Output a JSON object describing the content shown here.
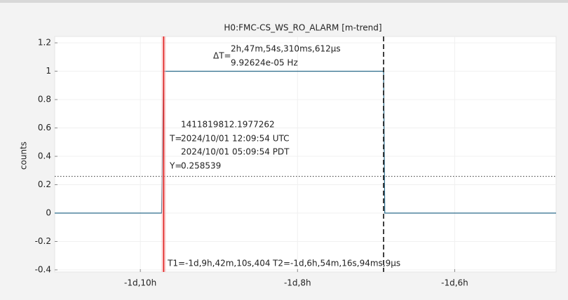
{
  "chart_data": {
    "type": "line",
    "title": "H0:FMC-CS_WS_RO_ALARM [m-trend]",
    "y_label": "counts",
    "x": [
      -35.09,
      -33.73,
      -33.703,
      -30.905,
      -30.89,
      -28.71
    ],
    "series": [
      {
        "name": "H0:FMC-CS_WS_RO_ALARM",
        "color": "#2b6b8a",
        "values": [
          0,
          0,
          1,
          1,
          0,
          0
        ]
      }
    ],
    "xlim": [
      -35.09,
      -28.71
    ],
    "ylim": [
      -0.415,
      1.245
    ],
    "xticks": [
      {
        "value": -34,
        "label": "-1d,10h"
      },
      {
        "value": -32,
        "label": "-1d,8h"
      },
      {
        "value": -30,
        "label": "-1d,6h"
      }
    ],
    "yticks": [
      1.2,
      1,
      0.8,
      0.6,
      0.4,
      0.2,
      0,
      -0.2,
      -0.4
    ],
    "grid": true,
    "cursor_t1": -33.703,
    "cursor_t1_label": "T1=-1d,9h,42m,10s,404",
    "cursor_t2": -30.905,
    "cursor_t2_label": "T2=-1d,6h,54m,16s,94ms,9μs",
    "delta_prefix": "ΔT=",
    "delta_t": "2h,47m,54s,310ms,612μs",
    "delta_f": "9.92624e-05 Hz",
    "cursor_y": 0.258539,
    "y_prefix": "Y=",
    "gps_time": "1411819812.1977262",
    "t_prefix": "T=",
    "utc_time": "2024/10/01 12:09:54 UTC",
    "pdt_time": "2024/10/01 05:09:54 PDT"
  }
}
